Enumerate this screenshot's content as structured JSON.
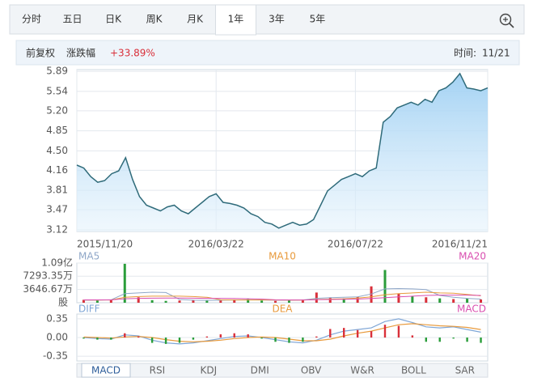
{
  "tabs": [
    "分时",
    "五日",
    "日K",
    "周K",
    "月K",
    "1年",
    "3年",
    "5年"
  ],
  "active_tab": 5,
  "info": {
    "adjust": "前复权",
    "change_label": "涨跌幅",
    "change_value": "+33.89%",
    "time_label": "时间:",
    "time_value": "11/21"
  },
  "indicator_tabs": [
    "MACD",
    "RSI",
    "KDJ",
    "DMI",
    "OBV",
    "W&R",
    "BOLL",
    "SAR"
  ],
  "active_indicator": 0,
  "chart_data": [
    {
      "type": "line",
      "fill": true,
      "color": "#2f6b7a",
      "categories": [
        "2015/11/20",
        null,
        null,
        null,
        null,
        null,
        null,
        null,
        null,
        null,
        null,
        null,
        null,
        null,
        null,
        null,
        null,
        null,
        null,
        null,
        "2016/03/22",
        null,
        null,
        null,
        null,
        null,
        null,
        null,
        null,
        null,
        null,
        null,
        null,
        null,
        null,
        null,
        null,
        null,
        null,
        null,
        "2016/07/22",
        null,
        null,
        null,
        null,
        null,
        null,
        null,
        null,
        null,
        null,
        null,
        null,
        null,
        null,
        null,
        null,
        null,
        null,
        "2016/11/21"
      ],
      "values": [
        4.25,
        4.2,
        4.05,
        3.95,
        3.98,
        4.1,
        4.15,
        4.38,
        4.0,
        3.7,
        3.55,
        3.5,
        3.45,
        3.52,
        3.55,
        3.45,
        3.4,
        3.5,
        3.6,
        3.7,
        3.75,
        3.6,
        3.58,
        3.55,
        3.5,
        3.4,
        3.35,
        3.25,
        3.22,
        3.15,
        3.2,
        3.25,
        3.2,
        3.22,
        3.3,
        3.55,
        3.8,
        3.9,
        4.0,
        4.05,
        4.1,
        4.05,
        4.15,
        4.2,
        5.0,
        5.1,
        5.25,
        5.3,
        5.35,
        5.3,
        5.4,
        5.35,
        5.55,
        5.6,
        5.7,
        5.85,
        5.6,
        5.58,
        5.55,
        5.6
      ],
      "ylim": [
        3.09,
        5.92
      ],
      "yticks": [
        5.89,
        5.54,
        {
          "value": 5.2,
          "label": "5.20"
        },
        4.85,
        {
          "value": 4.5,
          "label": "4.50"
        },
        4.16,
        3.81,
        3.47,
        3.12
      ],
      "grid": true
    },
    {
      "type": "volume",
      "values": [
        800,
        600,
        900,
        10700,
        1500,
        700,
        500,
        600,
        800,
        700,
        600,
        900,
        1000,
        600,
        500,
        700,
        900,
        2800,
        1400,
        1200,
        1600,
        4500,
        9000,
        2500,
        1800,
        1500,
        1200,
        1000,
        1100,
        900
      ],
      "colors": [
        "#d9303a",
        "#2a9d3a",
        "#d9303a",
        "#2a9d3a",
        "#d9303a",
        "#2a9d3a",
        "#2a9d3a",
        "#d9303a",
        "#d9303a",
        "#2a9d3a",
        "#d9303a",
        "#d9303a",
        "#2a9d3a",
        "#2a9d3a",
        "#d9303a",
        "#2a9d3a",
        "#d9303a",
        "#d9303a",
        "#d9303a",
        "#2a9d3a",
        "#d9303a",
        "#d9303a",
        "#2a9d3a",
        "#d9303a",
        "#2a9d3a",
        "#d9303a",
        "#2a9d3a",
        "#d9303a",
        "#2a9d3a",
        "#d9303a"
      ],
      "series": [
        {
          "name": "MA5",
          "color": "#8fa7c8",
          "values": [
            700,
            720,
            800,
            2500,
            2700,
            2900,
            2800,
            900,
            700,
            650,
            700,
            750,
            800,
            750,
            700,
            700,
            750,
            1200,
            1400,
            1500,
            1600,
            2400,
            3800,
            3900,
            3800,
            3600,
            2000,
            1500,
            1200,
            1000
          ]
        },
        {
          "name": "MA10",
          "color": "#e89a3c",
          "values": [
            750,
            740,
            760,
            1500,
            1700,
            1800,
            1800,
            1800,
            1700,
            1500,
            800,
            750,
            750,
            760,
            750,
            720,
            730,
            900,
            1000,
            1100,
            1300,
            1600,
            2200,
            2500,
            2700,
            2900,
            2700,
            2600,
            2300,
            1900
          ]
        },
        {
          "name": "MA20",
          "color": "#d94fb0",
          "values": [
            780,
            780,
            780,
            1100,
            1200,
            1250,
            1300,
            1300,
            1250,
            1200,
            1200,
            1150,
            1100,
            1000,
            800,
            760,
            760,
            820,
            880,
            950,
            1000,
            1150,
            1400,
            1600,
            1800,
            2000,
            2100,
            2100,
            2100,
            2000
          ]
        }
      ],
      "ylim": [
        0,
        10900
      ],
      "yticks": [
        {
          "value": 10900,
          "label": "1.09亿"
        },
        {
          "value": 7293.35,
          "label": "7293.35万"
        },
        {
          "value": 3646.67,
          "label": "3646.67万"
        }
      ],
      "unit_label": "股"
    },
    {
      "type": "macd",
      "series": [
        {
          "name": "DIFF",
          "color": "#7fa6d6",
          "values": [
            0.0,
            -0.02,
            -0.03,
            0.05,
            0.03,
            -0.05,
            -0.1,
            -0.12,
            -0.1,
            -0.06,
            -0.02,
            0.02,
            0.03,
            0.0,
            -0.04,
            -0.08,
            -0.1,
            -0.05,
            0.05,
            0.12,
            0.15,
            0.18,
            0.3,
            0.35,
            0.28,
            0.2,
            0.18,
            0.2,
            0.15,
            0.1
          ]
        },
        {
          "name": "DEA",
          "color": "#e89a3c",
          "values": [
            0.01,
            0.0,
            -0.01,
            0.01,
            0.02,
            0.0,
            -0.04,
            -0.07,
            -0.08,
            -0.07,
            -0.05,
            -0.02,
            0.0,
            0.01,
            0.0,
            -0.03,
            -0.06,
            -0.06,
            -0.03,
            0.03,
            0.08,
            0.12,
            0.18,
            0.24,
            0.26,
            0.24,
            0.22,
            0.21,
            0.19,
            0.15
          ]
        },
        {
          "name": "MACD",
          "type": "bar",
          "color": "#d94fb0",
          "up_color": "#d9303a",
          "down_color": "#2a9d3a",
          "values": [
            -0.02,
            -0.04,
            -0.04,
            0.08,
            0.02,
            -0.1,
            -0.12,
            -0.1,
            -0.04,
            0.02,
            0.06,
            0.08,
            0.06,
            -0.02,
            -0.08,
            -0.1,
            -0.08,
            0.02,
            0.16,
            0.18,
            0.14,
            0.12,
            0.24,
            0.22,
            0.04,
            -0.08,
            -0.08,
            -0.02,
            -0.08,
            -0.1
          ]
        }
      ],
      "ylim": [
        -0.44,
        0.44
      ],
      "yticks": [
        0.35,
        {
          "value": 0,
          "label": "0.00"
        },
        -0.35
      ]
    }
  ]
}
